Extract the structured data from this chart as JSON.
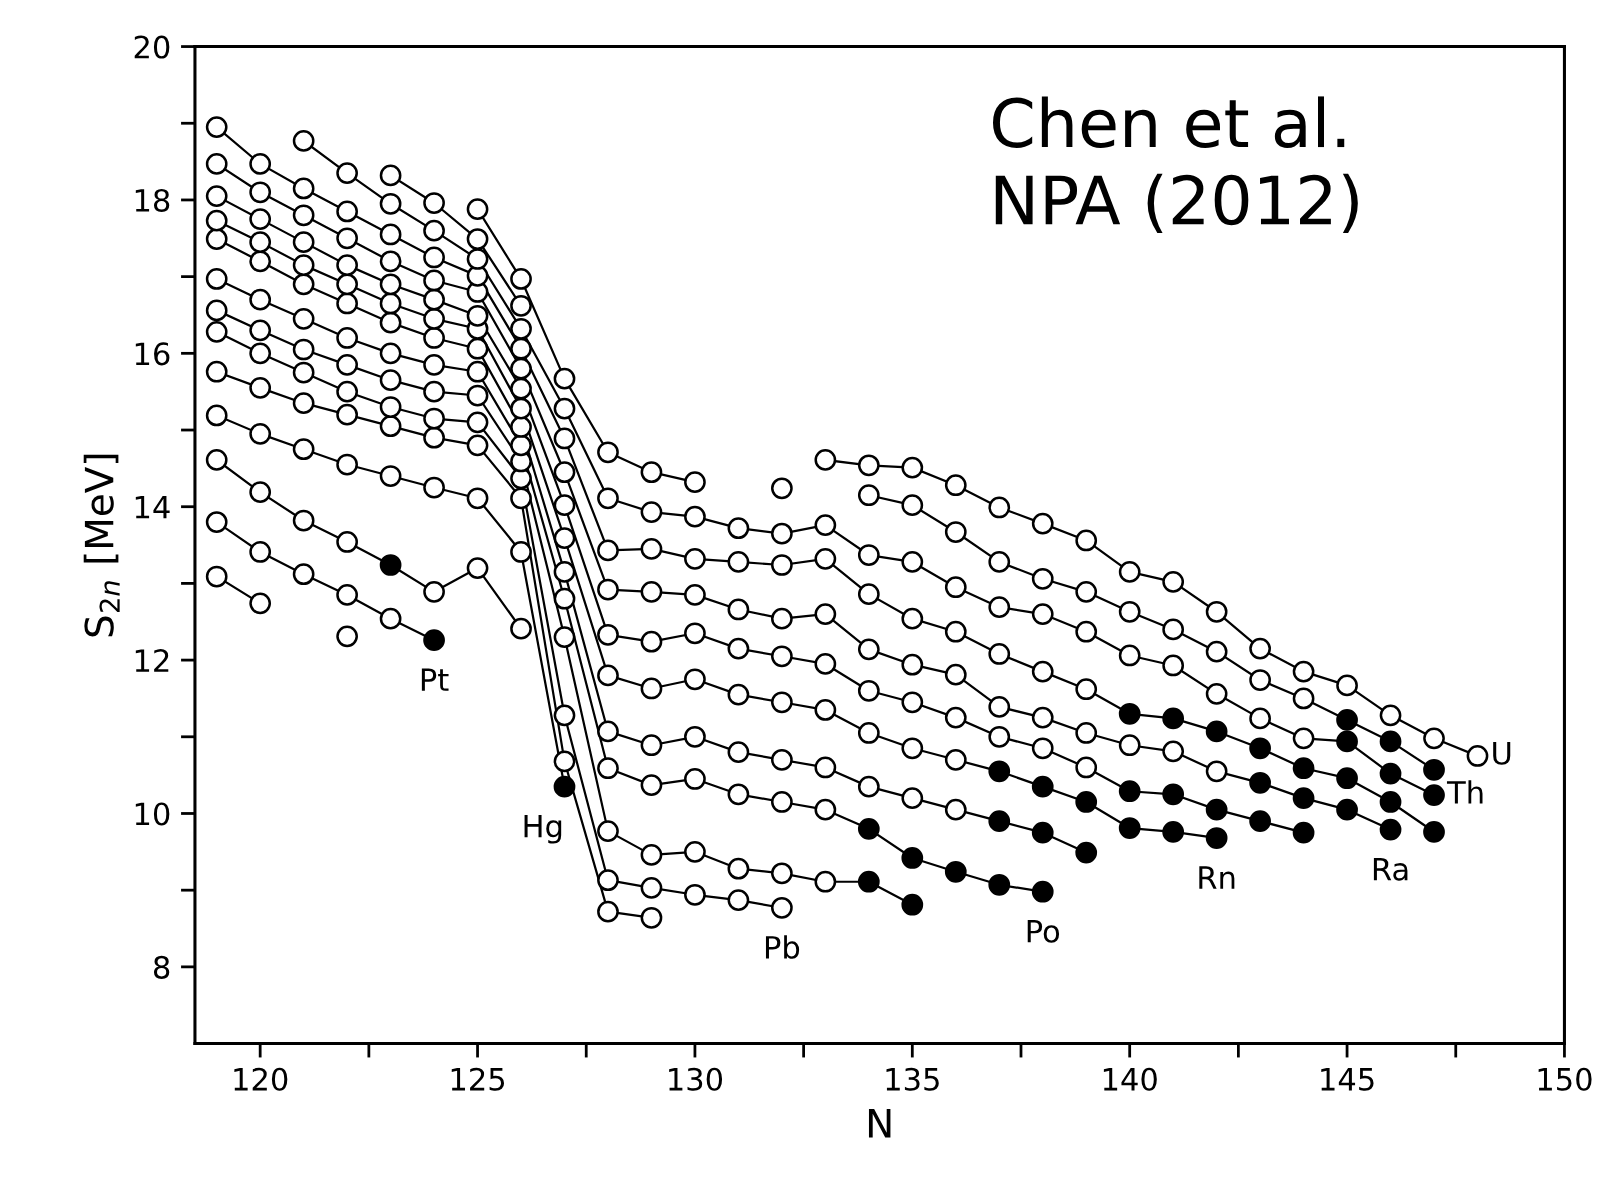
{
  "chart_data": {
    "type": "line",
    "xlabel": "N",
    "ylabel": "S$_{2n}$ [MeV]",
    "marker": "circle",
    "grid": false,
    "legend": false,
    "xlim": [
      118.5,
      150
    ],
    "ylim": [
      7,
      20
    ],
    "xticks": [
      120,
      {
        "value": 122.5,
        "label": null
      },
      125,
      {
        "value": 127.5,
        "label": null
      },
      130,
      {
        "value": 132.5,
        "label": null
      },
      135,
      {
        "value": 137.5,
        "label": null
      },
      140,
      {
        "value": 142.5,
        "label": null
      },
      145,
      {
        "value": 147.5,
        "label": null
      },
      150
    ],
    "yticks": [
      8,
      {
        "value": 9,
        "label": null
      },
      10,
      {
        "value": 11,
        "label": null
      },
      12,
      {
        "value": 13,
        "label": null
      },
      14,
      {
        "value": 15,
        "label": null
      },
      16,
      {
        "value": 17,
        "label": null
      },
      18,
      {
        "value": 19,
        "label": null
      },
      20
    ],
    "x": [
      119,
      120,
      121,
      122,
      123,
      124,
      125,
      126,
      127,
      128,
      129,
      130,
      131,
      132,
      133,
      134,
      135,
      136,
      137,
      138,
      139,
      140,
      141,
      142,
      143,
      144,
      145,
      146,
      147,
      148
    ],
    "series": [
      {
        "color": "#000000",
        "values": [
          13.09,
          12.74,
          null,
          12.31,
          null,
          null,
          null,
          null,
          null,
          null,
          null,
          null,
          null,
          null,
          null,
          null,
          null,
          null,
          null,
          null,
          null,
          null,
          null,
          null,
          null,
          null,
          null,
          null,
          null,
          null
        ],
        "colors": [
          "#ffffff",
          "#ffffff",
          null,
          "#ffffff",
          null,
          null,
          null,
          null,
          null,
          null,
          null,
          null,
          null,
          null,
          null,
          null,
          null,
          null,
          null,
          null,
          null,
          null,
          null,
          null,
          null,
          null,
          null,
          null,
          null,
          null
        ]
      },
      {
        "name": "Pt",
        "color": "#000000",
        "values": [
          13.8,
          13.41,
          13.12,
          12.85,
          12.54,
          12.26,
          null,
          null,
          null,
          null,
          null,
          null,
          null,
          null,
          null,
          null,
          null,
          null,
          null,
          null,
          null,
          null,
          null,
          null,
          null,
          null,
          null,
          null,
          null,
          null
        ],
        "colors": [
          "#ffffff",
          "#ffffff",
          "#ffffff",
          "#ffffff",
          "#ffffff",
          "#000000",
          null,
          null,
          null,
          null,
          null,
          null,
          null,
          null,
          null,
          null,
          null,
          null,
          null,
          null,
          null,
          null,
          null,
          null,
          null,
          null,
          null,
          null,
          null,
          null
        ]
      },
      {
        "color": "#000000",
        "values": [
          14.61,
          14.19,
          13.82,
          13.54,
          13.24,
          12.89,
          13.2,
          12.41,
          null,
          null,
          null,
          null,
          null,
          null,
          null,
          null,
          null,
          null,
          null,
          null,
          null,
          null,
          null,
          null,
          null,
          null,
          null,
          null,
          null,
          null
        ],
        "colors": [
          "#ffffff",
          "#ffffff",
          "#ffffff",
          "#ffffff",
          "#000000",
          "#ffffff",
          "#ffffff",
          "#ffffff",
          null,
          null,
          null,
          null,
          null,
          null,
          null,
          null,
          null,
          null,
          null,
          null,
          null,
          null,
          null,
          null,
          null,
          null,
          null,
          null,
          null,
          null
        ]
      },
      {
        "name": "Hg",
        "color": "#000000",
        "values": [
          15.19,
          14.95,
          14.75,
          14.55,
          14.4,
          14.25,
          14.11,
          13.41,
          10.35,
          null,
          null,
          null,
          null,
          null,
          null,
          null,
          null,
          null,
          null,
          null,
          null,
          null,
          null,
          null,
          null,
          null,
          null,
          null,
          null,
          null
        ],
        "colors": [
          "#ffffff",
          "#ffffff",
          "#ffffff",
          "#ffffff",
          "#ffffff",
          "#ffffff",
          "#ffffff",
          "#ffffff",
          "#000000",
          null,
          null,
          null,
          null,
          null,
          null,
          null,
          null,
          null,
          null,
          null,
          null,
          null,
          null,
          null,
          null,
          null,
          null,
          null,
          null,
          null
        ]
      },
      {
        "color": "#000000",
        "values": [
          15.76,
          15.55,
          15.35,
          15.2,
          15.05,
          14.9,
          14.8,
          14.11,
          10.68,
          8.72,
          8.64,
          null,
          null,
          null,
          null,
          null,
          null,
          null,
          null,
          null,
          null,
          null,
          null,
          null,
          null,
          null,
          null,
          null,
          null,
          null
        ],
        "colors": [
          "#ffffff",
          "#ffffff",
          "#ffffff",
          "#ffffff",
          "#ffffff",
          "#ffffff",
          "#ffffff",
          "#ffffff",
          "#ffffff",
          "#ffffff",
          "#ffffff",
          null,
          null,
          null,
          null,
          null,
          null,
          null,
          null,
          null,
          null,
          null,
          null,
          null,
          null,
          null,
          null,
          null,
          null,
          null
        ]
      },
      {
        "name": "Pb",
        "color": "#000000",
        "values": [
          16.28,
          16.0,
          15.75,
          15.5,
          15.3,
          15.15,
          15.1,
          14.37,
          11.28,
          9.13,
          9.03,
          8.94,
          8.87,
          8.77,
          null,
          null,
          null,
          null,
          null,
          null,
          null,
          null,
          null,
          null,
          null,
          null,
          null,
          null,
          null,
          null
        ],
        "colors": [
          "#ffffff",
          "#ffffff",
          "#ffffff",
          "#ffffff",
          "#ffffff",
          "#ffffff",
          "#ffffff",
          "#ffffff",
          "#ffffff",
          "#ffffff",
          "#ffffff",
          "#ffffff",
          "#ffffff",
          "#ffffff",
          null,
          null,
          null,
          null,
          null,
          null,
          null,
          null,
          null,
          null,
          null,
          null,
          null,
          null,
          null,
          null
        ]
      },
      {
        "color": "#000000",
        "values": [
          16.56,
          16.3,
          16.05,
          15.85,
          15.65,
          15.5,
          15.45,
          14.59,
          12.3,
          9.77,
          9.46,
          9.5,
          9.28,
          9.22,
          9.11,
          9.11,
          8.81,
          null,
          null,
          null,
          null,
          null,
          null,
          null,
          null,
          null,
          null,
          null,
          null,
          null
        ],
        "colors": [
          "#ffffff",
          "#ffffff",
          "#ffffff",
          "#ffffff",
          "#ffffff",
          "#ffffff",
          "#ffffff",
          "#ffffff",
          "#ffffff",
          "#ffffff",
          "#ffffff",
          "#ffffff",
          "#ffffff",
          "#ffffff",
          "#ffffff",
          "#000000",
          "#000000",
          null,
          null,
          null,
          null,
          null,
          null,
          null,
          null,
          null,
          null,
          null,
          null,
          null
        ]
      },
      {
        "name": "Po",
        "color": "#000000",
        "values": [
          16.97,
          16.7,
          16.45,
          16.2,
          16.0,
          15.85,
          15.76,
          14.8,
          12.8,
          10.59,
          10.37,
          10.45,
          10.25,
          10.15,
          10.05,
          9.8,
          9.42,
          9.24,
          9.07,
          8.98,
          null,
          null,
          null,
          null,
          null,
          null,
          null,
          null,
          null,
          null
        ],
        "colors": [
          "#ffffff",
          "#ffffff",
          "#ffffff",
          "#ffffff",
          "#ffffff",
          "#ffffff",
          "#ffffff",
          "#ffffff",
          "#ffffff",
          "#ffffff",
          "#ffffff",
          "#ffffff",
          "#ffffff",
          "#ffffff",
          "#ffffff",
          "#000000",
          "#000000",
          "#000000",
          "#000000",
          "#000000",
          null,
          null,
          null,
          null,
          null,
          null,
          null,
          null,
          null,
          null
        ]
      },
      {
        "color": "#000000",
        "values": [
          17.49,
          17.2,
          16.9,
          16.65,
          16.4,
          16.2,
          16.06,
          15.04,
          13.15,
          11.07,
          10.89,
          11.0,
          10.8,
          10.7,
          10.6,
          10.35,
          10.2,
          10.05,
          9.9,
          9.75,
          9.49,
          null,
          null,
          null,
          null,
          null,
          null,
          null,
          null,
          null
        ],
        "colors": [
          "#ffffff",
          "#ffffff",
          "#ffffff",
          "#ffffff",
          "#ffffff",
          "#ffffff",
          "#ffffff",
          "#ffffff",
          "#ffffff",
          "#ffffff",
          "#ffffff",
          "#ffffff",
          "#ffffff",
          "#ffffff",
          "#ffffff",
          "#ffffff",
          "#ffffff",
          "#ffffff",
          "#000000",
          "#000000",
          "#000000",
          null,
          null,
          null,
          null,
          null,
          null,
          null,
          null,
          null
        ]
      },
      {
        "name": "Rn",
        "color": "#000000",
        "values": [
          17.73,
          17.45,
          17.15,
          16.9,
          16.65,
          16.45,
          16.32,
          15.28,
          13.59,
          11.8,
          11.63,
          11.75,
          11.55,
          11.45,
          11.35,
          11.05,
          10.85,
          10.7,
          10.55,
          10.35,
          10.15,
          9.81,
          9.76,
          9.68,
          null,
          null,
          null,
          null,
          null,
          null
        ],
        "colors": [
          "#ffffff",
          "#ffffff",
          "#ffffff",
          "#ffffff",
          "#ffffff",
          "#ffffff",
          "#ffffff",
          "#ffffff",
          "#ffffff",
          "#ffffff",
          "#ffffff",
          "#ffffff",
          "#ffffff",
          "#ffffff",
          "#ffffff",
          "#ffffff",
          "#ffffff",
          "#ffffff",
          "#000000",
          "#000000",
          "#000000",
          "#000000",
          "#000000",
          "#000000",
          null,
          null,
          null,
          null,
          null,
          null
        ]
      },
      {
        "color": "#000000",
        "values": [
          18.05,
          17.75,
          17.45,
          17.15,
          16.9,
          16.7,
          16.49,
          15.54,
          14.02,
          12.33,
          12.24,
          12.35,
          12.15,
          12.05,
          11.95,
          11.6,
          11.45,
          11.25,
          11.0,
          10.85,
          10.6,
          10.29,
          10.25,
          10.05,
          9.9,
          9.75,
          null,
          null,
          null,
          null
        ],
        "colors": [
          "#ffffff",
          "#ffffff",
          "#ffffff",
          "#ffffff",
          "#ffffff",
          "#ffffff",
          "#ffffff",
          "#ffffff",
          "#ffffff",
          "#ffffff",
          "#ffffff",
          "#ffffff",
          "#ffffff",
          "#ffffff",
          "#ffffff",
          "#ffffff",
          "#ffffff",
          "#ffffff",
          "#ffffff",
          "#ffffff",
          "#ffffff",
          "#000000",
          "#000000",
          "#000000",
          "#000000",
          "#000000",
          null,
          null,
          null,
          null
        ]
      },
      {
        "name": "Ra",
        "color": "#000000",
        "values": [
          18.47,
          18.1,
          17.8,
          17.5,
          17.2,
          16.95,
          16.8,
          15.8,
          14.45,
          12.92,
          12.89,
          12.85,
          12.66,
          12.54,
          12.6,
          12.14,
          11.94,
          11.81,
          11.39,
          11.25,
          11.05,
          10.89,
          10.81,
          10.55,
          10.4,
          10.2,
          10.05,
          9.79,
          null,
          null
        ],
        "colors": [
          "#ffffff",
          "#ffffff",
          "#ffffff",
          "#ffffff",
          "#ffffff",
          "#ffffff",
          "#ffffff",
          "#ffffff",
          "#ffffff",
          "#ffffff",
          "#ffffff",
          "#ffffff",
          "#ffffff",
          "#ffffff",
          "#ffffff",
          "#ffffff",
          "#ffffff",
          "#ffffff",
          "#ffffff",
          "#ffffff",
          "#ffffff",
          "#ffffff",
          "#ffffff",
          "#ffffff",
          "#000000",
          "#000000",
          "#000000",
          "#000000",
          null,
          null
        ]
      },
      {
        "color": "#000000",
        "values": [
          18.95,
          18.47,
          18.15,
          17.85,
          17.55,
          17.25,
          17.01,
          16.06,
          14.89,
          13.43,
          13.45,
          13.32,
          13.28,
          13.24,
          13.32,
          12.86,
          12.54,
          12.37,
          12.08,
          11.85,
          11.62,
          11.3,
          11.24,
          11.07,
          10.85,
          10.59,
          10.46,
          10.15,
          9.76,
          null
        ],
        "colors": [
          "#ffffff",
          "#ffffff",
          "#ffffff",
          "#ffffff",
          "#ffffff",
          "#ffffff",
          "#ffffff",
          "#ffffff",
          "#ffffff",
          "#ffffff",
          "#ffffff",
          "#ffffff",
          "#ffffff",
          "#ffffff",
          "#ffffff",
          "#ffffff",
          "#ffffff",
          "#ffffff",
          "#ffffff",
          "#ffffff",
          "#ffffff",
          "#000000",
          "#000000",
          "#000000",
          "#000000",
          "#000000",
          "#000000",
          "#000000",
          "#000000",
          null
        ]
      },
      {
        "name": "Th",
        "color": "#000000",
        "values": [
          null,
          null,
          18.77,
          18.35,
          17.95,
          17.6,
          17.23,
          16.32,
          15.28,
          14.11,
          13.93,
          13.87,
          13.72,
          13.65,
          13.76,
          13.37,
          13.28,
          12.95,
          12.69,
          12.6,
          12.37,
          12.06,
          11.93,
          11.56,
          11.24,
          10.98,
          10.94,
          10.52,
          10.24,
          null
        ],
        "colors": [
          null,
          null,
          "#ffffff",
          "#ffffff",
          "#ffffff",
          "#ffffff",
          "#ffffff",
          "#ffffff",
          "#ffffff",
          "#ffffff",
          "#ffffff",
          "#ffffff",
          "#ffffff",
          "#ffffff",
          "#ffffff",
          "#ffffff",
          "#ffffff",
          "#ffffff",
          "#ffffff",
          "#ffffff",
          "#ffffff",
          "#ffffff",
          "#ffffff",
          "#ffffff",
          "#ffffff",
          "#ffffff",
          "#000000",
          "#000000",
          "#000000",
          null
        ]
      },
      {
        "color": "#000000",
        "values": [
          null,
          null,
          null,
          null,
          18.32,
          17.96,
          17.49,
          16.62,
          null,
          null,
          null,
          null,
          null,
          14.24,
          null,
          14.15,
          14.02,
          13.67,
          13.28,
          13.06,
          12.89,
          12.63,
          12.4,
          12.11,
          11.74,
          11.5,
          11.22,
          10.94,
          10.57,
          null
        ],
        "colors": [
          null,
          null,
          null,
          null,
          "#ffffff",
          "#ffffff",
          "#ffffff",
          "#ffffff",
          null,
          null,
          null,
          null,
          null,
          "#ffffff",
          null,
          "#ffffff",
          "#ffffff",
          "#ffffff",
          "#ffffff",
          "#ffffff",
          "#ffffff",
          "#ffffff",
          "#ffffff",
          "#ffffff",
          "#ffffff",
          "#ffffff",
          "#000000",
          "#000000",
          "#000000",
          null
        ]
      },
      {
        "name": "U",
        "color": "#000000",
        "values": [
          null,
          null,
          null,
          null,
          null,
          null,
          17.88,
          16.97,
          15.67,
          14.71,
          14.45,
          14.32,
          null,
          null,
          14.61,
          14.54,
          14.51,
          14.28,
          13.99,
          13.78,
          13.56,
          13.15,
          13.02,
          12.63,
          12.15,
          11.85,
          11.67,
          11.28,
          10.98,
          10.75
        ],
        "colors": [
          null,
          null,
          null,
          null,
          null,
          null,
          "#ffffff",
          "#ffffff",
          "#ffffff",
          "#ffffff",
          "#ffffff",
          "#ffffff",
          null,
          null,
          "#ffffff",
          "#ffffff",
          "#ffffff",
          "#ffffff",
          "#ffffff",
          "#ffffff",
          "#ffffff",
          "#ffffff",
          "#ffffff",
          "#ffffff",
          "#ffffff",
          "#ffffff",
          "#ffffff",
          "#ffffff",
          "#ffffff",
          "#ffffff"
        ]
      }
    ],
    "annotations": [
      "Chen et al.\nNPA (2012)"
    ]
  }
}
